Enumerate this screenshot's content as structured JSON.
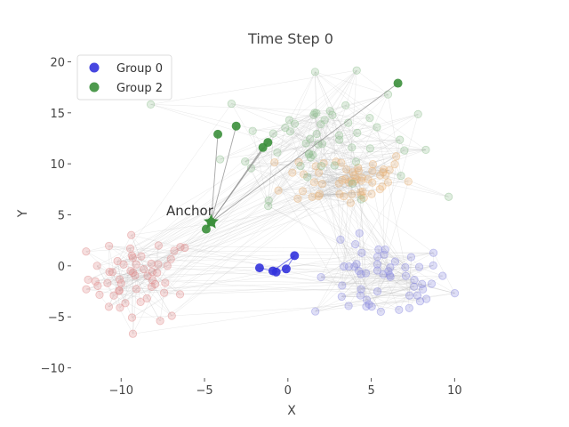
{
  "chart_data": {
    "type": "scatter",
    "title": "Time Step 0",
    "xlabel": "X",
    "ylabel": "Y",
    "xlim": [
      -13,
      13.5
    ],
    "ylim": [
      -11,
      21
    ],
    "xticks": [
      -10,
      -5,
      0,
      5,
      10
    ],
    "xtick_labels": [
      "−10",
      "−5",
      "0",
      "5",
      "10"
    ],
    "yticks": [
      -10,
      -5,
      0,
      5,
      10,
      15,
      20
    ],
    "ytick_labels": [
      "−10",
      "−5",
      "0",
      "5",
      "10",
      "15",
      "20"
    ],
    "grid": false,
    "legend_position": "top-left",
    "annotation": {
      "text": "Anchor",
      "x": -4.6,
      "y": 4.3
    },
    "legend": [
      {
        "label": "Group 0",
        "color": "#3333dd"
      },
      {
        "label": "Group 2",
        "color": "#3b8f3b"
      }
    ],
    "series": [
      {
        "name": "Group 0",
        "color": "#3333dd",
        "points": [
          [
            -1.7,
            -0.2
          ],
          [
            -0.7,
            -0.6
          ],
          [
            -0.1,
            -0.3
          ],
          [
            0.4,
            1.0
          ],
          [
            -0.9,
            -0.5
          ]
        ]
      },
      {
        "name": "Group 2",
        "color": "#3b8f3b",
        "points": [
          [
            -4.2,
            12.9
          ],
          [
            -3.1,
            13.7
          ],
          [
            -1.2,
            12.1
          ],
          [
            -1.5,
            11.6
          ],
          [
            6.6,
            17.9
          ],
          [
            -4.9,
            3.6
          ],
          [
            -4.6,
            4.3
          ]
        ]
      }
    ],
    "background_clusters": [
      {
        "name": "faded-red",
        "color": "#e08a8a",
        "center": [
          -8.8,
          -1.2
        ],
        "spread": [
          2.0,
          2.6
        ]
      },
      {
        "name": "faded-blue",
        "color": "#8a8ae0",
        "center": [
          5.6,
          -1.6
        ],
        "spread": [
          2.6,
          2.4
        ]
      },
      {
        "name": "faded-orange",
        "color": "#e8b47a",
        "center": [
          3.6,
          8.6
        ],
        "spread": [
          2.4,
          1.8
        ]
      },
      {
        "name": "faded-green",
        "color": "#8fc08f",
        "center": [
          1.8,
          12.5
        ],
        "spread": [
          3.6,
          3.6
        ]
      }
    ],
    "anchor": {
      "x": -4.6,
      "y": 4.3,
      "color": "#3b8f3b"
    }
  }
}
